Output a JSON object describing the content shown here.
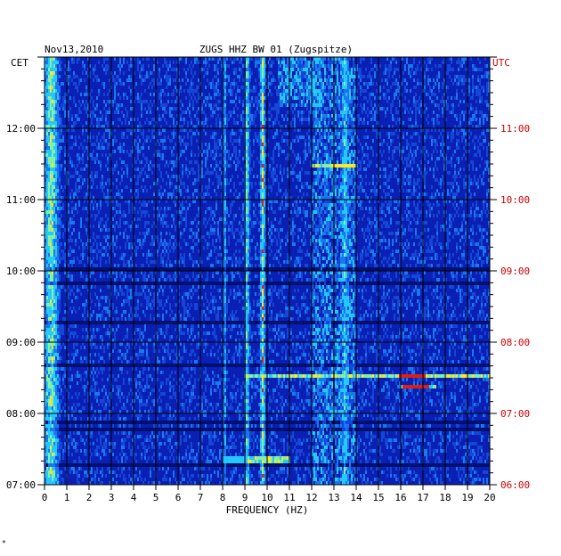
{
  "chart_data": {
    "type": "heatmap",
    "date": "Nov13,2010",
    "station": "ZUGS HHZ BW 01 (Zugspitze)",
    "left_axis_title": "CET",
    "right_axis_title": "UTC",
    "xlabel": "FREQUENCY (HZ)",
    "xlim": [
      0,
      20
    ],
    "x_ticks": [
      "0",
      "1",
      "2",
      "3",
      "4",
      "5",
      "6",
      "7",
      "8",
      "9",
      "10",
      "11",
      "12",
      "13",
      "14",
      "15",
      "16",
      "17",
      "18",
      "19",
      "20"
    ],
    "cet_ticks": [
      {
        "label": "12:00",
        "hours": 12
      },
      {
        "label": "11:00",
        "hours": 11
      },
      {
        "label": "10:00",
        "hours": 10
      },
      {
        "label": "09:00",
        "hours": 9
      },
      {
        "label": "08:00",
        "hours": 8
      },
      {
        "label": "07:00",
        "hours": 7
      }
    ],
    "utc_ticks": [
      {
        "label": "11:00",
        "hours": 11
      },
      {
        "label": "10:00",
        "hours": 10
      },
      {
        "label": "09:00",
        "hours": 9
      },
      {
        "label": "08:00",
        "hours": 8
      },
      {
        "label": "07:00",
        "hours": 7
      },
      {
        "label": "06:00",
        "hours": 6
      }
    ],
    "cet_range_hours": [
      7,
      13
    ],
    "utc_offset_hours": -1,
    "colors": {
      "background": "#0a1fb4",
      "dark_row": "#00106e",
      "grid": "#000000",
      "cyan": "#24c8ff",
      "yellow": "#ffe61e",
      "red": "#e01e12",
      "utc_text": "#cc0000"
    },
    "persistent_bands_hz": [
      {
        "freq": 0.3,
        "width": 0.6,
        "intensity": 0.8
      },
      {
        "freq": 8.1,
        "width": 0.15,
        "intensity": 0.55
      },
      {
        "freq": 9.1,
        "width": 0.2,
        "intensity": 0.75
      },
      {
        "freq": 9.8,
        "width": 0.2,
        "intensity": 0.85
      },
      {
        "freq": 13.5,
        "width": 0.35,
        "intensity": 0.6
      }
    ],
    "notable_events": [
      {
        "cet_hours": 8.52,
        "freq_start": 9.0,
        "freq_end": 20.0,
        "peak_freq": 16.5,
        "intensity": 1.0
      },
      {
        "cet_hours": 8.36,
        "freq_start": 16.0,
        "freq_end": 17.6,
        "peak_freq": 16.7,
        "intensity": 1.0
      },
      {
        "cet_hours": 11.47,
        "freq_start": 12.0,
        "freq_end": 14.0,
        "peak_freq": 13.5,
        "intensity": 0.8
      },
      {
        "cet_hours": 7.35,
        "freq_start": 8.0,
        "freq_end": 11.0,
        "peak_freq": 8.5,
        "intensity": 0.6
      }
    ]
  },
  "footer_mark": "*"
}
